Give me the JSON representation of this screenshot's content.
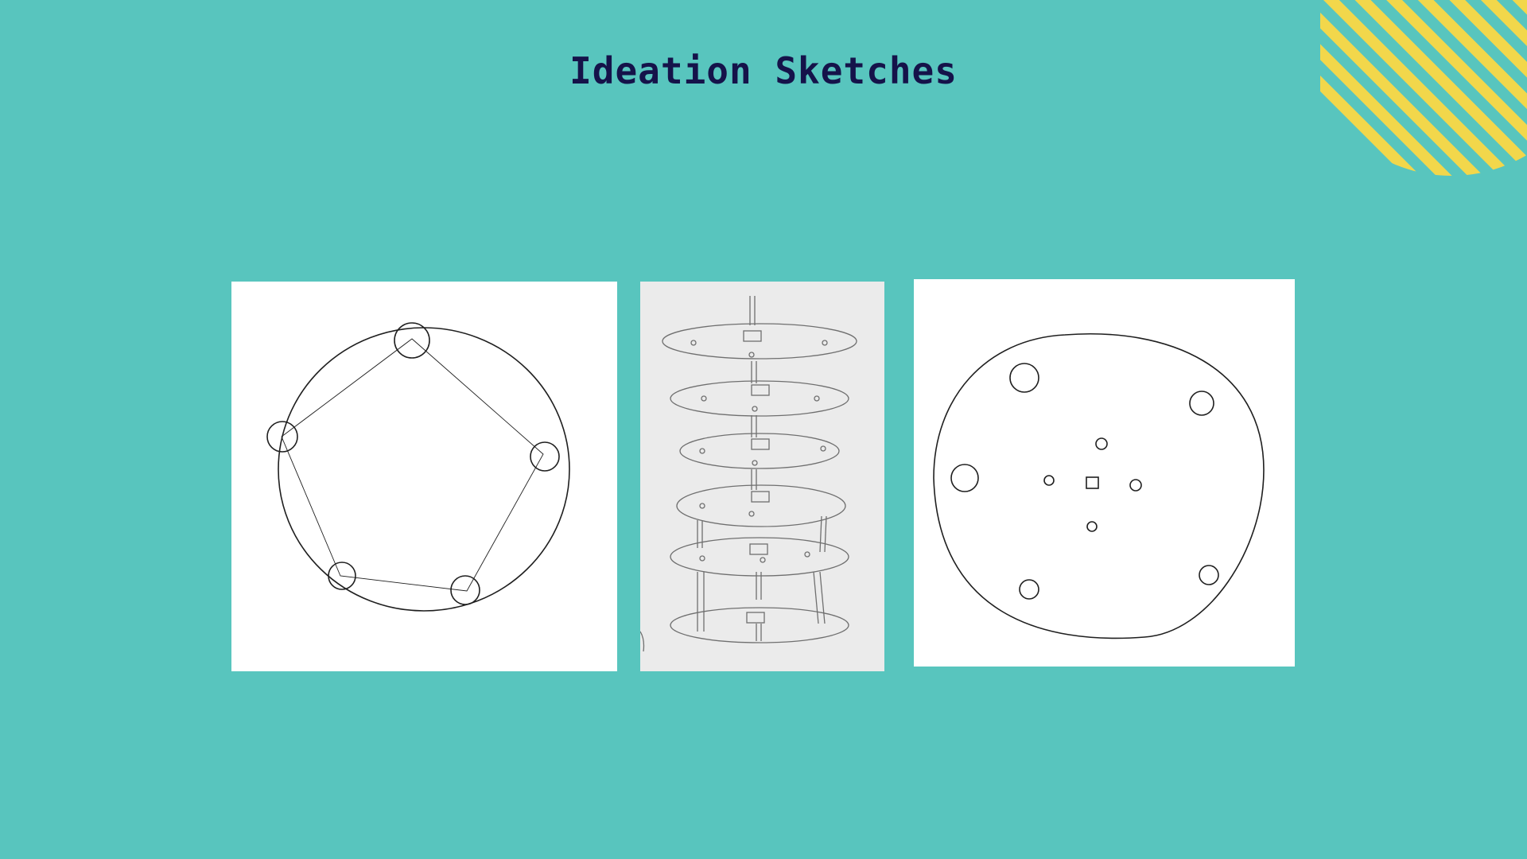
{
  "slide": {
    "title": "Ideation Sketches",
    "colors": {
      "background": "#58c5be",
      "title": "#15134a",
      "accent_stripes": "#f2d74b",
      "ink": "#1f1f1f"
    },
    "decoration": "yellow-striped-quarter-circle",
    "sketches": [
      {
        "name": "pentagon-ring-sketch",
        "description_icon": "circle-with-five-nodes"
      },
      {
        "name": "stacked-discs-sketch",
        "description_icon": "stacked-tiers-on-pole"
      },
      {
        "name": "top-view-disc-sketch",
        "description_icon": "circle-with-holes"
      }
    ]
  }
}
